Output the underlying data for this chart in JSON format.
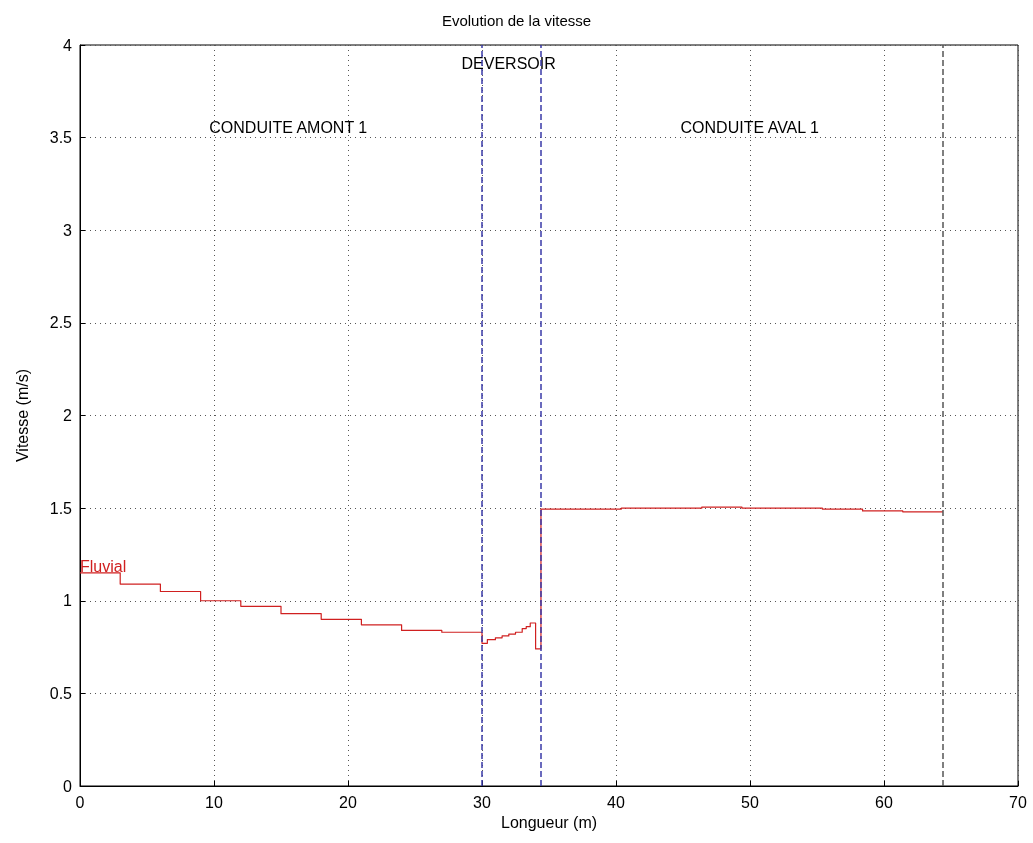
{
  "chart_data": {
    "type": "step",
    "title": "Evolution de la vitesse",
    "xlabel": "Longueur (m)",
    "ylabel": "Vitesse (m/s)",
    "xlim": [
      0,
      70
    ],
    "xticks": [
      0,
      10,
      20,
      30,
      40,
      50,
      60,
      70
    ],
    "ylim": [
      0,
      4
    ],
    "yticks": [
      0,
      0.5,
      1,
      1.5,
      2,
      2.5,
      3,
      3.5,
      4
    ],
    "grid": true,
    "series": [
      {
        "name": "Fluvial",
        "color": "#d02020",
        "line_style": "solid",
        "x": [
          0,
          3,
          6,
          9,
          12,
          15,
          18,
          21,
          24,
          27,
          30,
          30.4,
          31,
          31.5,
          32,
          32.5,
          33,
          33.3,
          33.6,
          34,
          34.4,
          40.4,
          46.4,
          49.4,
          55.4,
          58.4,
          61.4,
          64.4
        ],
        "values": [
          1.15,
          1.09,
          1.05,
          1.0,
          0.97,
          0.93,
          0.9,
          0.87,
          0.84,
          0.83,
          0.77,
          0.79,
          0.8,
          0.81,
          0.82,
          0.83,
          0.85,
          0.86,
          0.88,
          0.74,
          1.495,
          1.5,
          1.505,
          1.5,
          1.495,
          1.485,
          1.48,
          1.48
        ]
      }
    ],
    "ref_lines": [
      {
        "axis": "x",
        "value": 30,
        "color": "#3a3aa8",
        "line_style": "dashed"
      },
      {
        "axis": "x",
        "value": 34.4,
        "color": "#3a3aa8",
        "line_style": "dashed"
      },
      {
        "axis": "x",
        "value": 64.4,
        "color": "#555555",
        "line_style": "dashed"
      }
    ],
    "annotations": [
      "CONDUITE AMONT 1",
      "DEVERSOIR",
      "CONDUITE AVAL 1"
    ]
  }
}
